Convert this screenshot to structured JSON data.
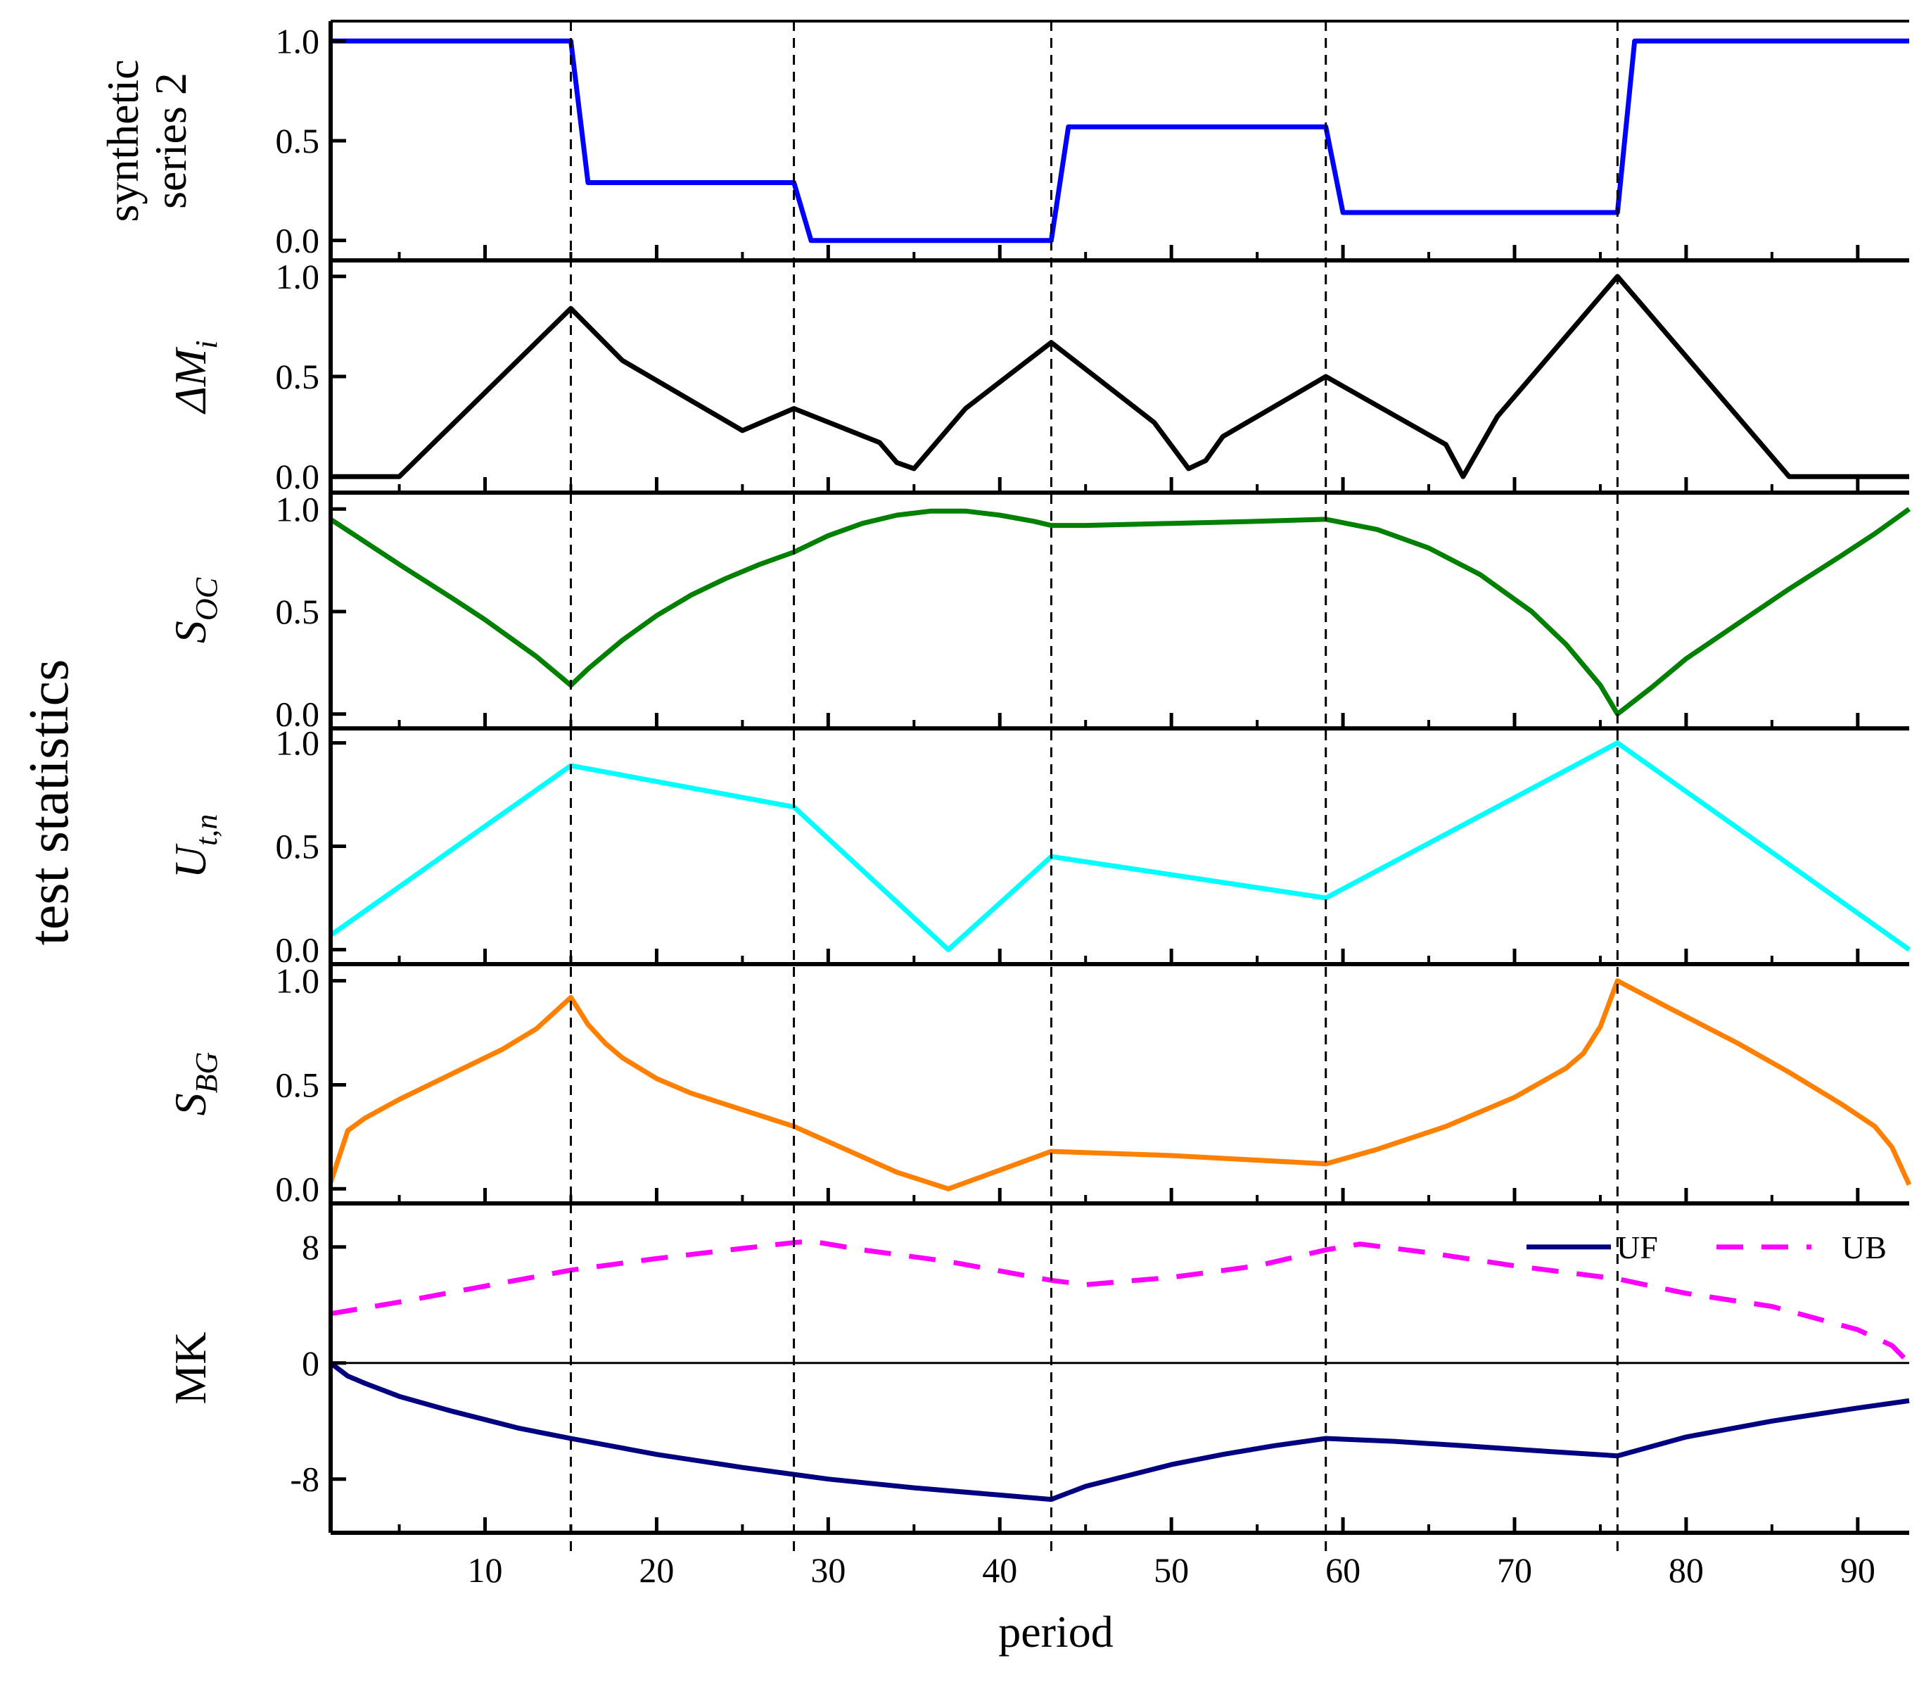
{
  "chart_data": {
    "type": "line",
    "xlabel": "period",
    "ylabel": "test statistics",
    "xlim": [
      1,
      93
    ],
    "x_ticks": [
      10,
      20,
      30,
      40,
      50,
      60,
      70,
      80,
      90
    ],
    "x_tick_labels": [
      "10",
      "20",
      "30",
      "40",
      "50",
      "60",
      "70",
      "80",
      "90"
    ],
    "change_points": [
      15,
      28,
      43,
      59,
      76
    ],
    "panels": [
      {
        "id": "synthetic",
        "ylabel_lines": [
          "synthetic",
          "series 2"
        ],
        "ylim": [
          -0.1,
          1.1
        ],
        "y_ticks": [
          0,
          0.5,
          1
        ],
        "y_tick_labels": [
          "0.0",
          "0.5",
          "1.0"
        ],
        "series": [
          {
            "name": "synthetic series 2",
            "color": "#0000ff",
            "dash": "",
            "points": [
              [
                1,
                1.0
              ],
              [
                15,
                1.0
              ],
              [
                16,
                0.29
              ],
              [
                28,
                0.29
              ],
              [
                29,
                0.0
              ],
              [
                43,
                0.0
              ],
              [
                44,
                0.57
              ],
              [
                59,
                0.57
              ],
              [
                60,
                0.14
              ],
              [
                76,
                0.14
              ],
              [
                77,
                1.0
              ],
              [
                93,
                1.0
              ]
            ]
          }
        ]
      },
      {
        "id": "delta-m",
        "ylabel_main": "ΔM",
        "ylabel_sub": "i",
        "ylim": [
          -0.08,
          1.08
        ],
        "y_ticks": [
          0,
          0.5,
          1
        ],
        "y_tick_labels": [
          "0.0",
          "0.5",
          "1.0"
        ],
        "series": [
          {
            "name": "ΔMi",
            "color": "#000000",
            "dash": "",
            "points": [
              [
                1,
                0.0
              ],
              [
                5,
                0.0
              ],
              [
                15,
                0.84
              ],
              [
                18,
                0.58
              ],
              [
                25,
                0.23
              ],
              [
                28,
                0.34
              ],
              [
                33,
                0.17
              ],
              [
                34,
                0.07
              ],
              [
                35,
                0.04
              ],
              [
                38,
                0.34
              ],
              [
                43,
                0.67
              ],
              [
                49,
                0.27
              ],
              [
                51,
                0.04
              ],
              [
                52,
                0.08
              ],
              [
                53,
                0.2
              ],
              [
                59,
                0.5
              ],
              [
                66,
                0.16
              ],
              [
                67,
                0.0
              ],
              [
                69,
                0.3
              ],
              [
                76,
                1.0
              ],
              [
                86,
                0.0
              ],
              [
                93,
                0.0
              ]
            ]
          }
        ]
      },
      {
        "id": "s-oc",
        "ylabel_main": "S",
        "ylabel_sub": "OC",
        "ylim": [
          -0.07,
          1.08
        ],
        "y_ticks": [
          0,
          0.5,
          1
        ],
        "y_tick_labels": [
          "0.0",
          "0.5",
          "1.0"
        ],
        "series": [
          {
            "name": "SOC",
            "color": "#008000",
            "dash": "",
            "points": [
              [
                1,
                0.95
              ],
              [
                3,
                0.84
              ],
              [
                5,
                0.73
              ],
              [
                8,
                0.57
              ],
              [
                10,
                0.46
              ],
              [
                13,
                0.28
              ],
              [
                15,
                0.14
              ],
              [
                16,
                0.22
              ],
              [
                18,
                0.36
              ],
              [
                20,
                0.48
              ],
              [
                22,
                0.58
              ],
              [
                24,
                0.66
              ],
              [
                26,
                0.73
              ],
              [
                28,
                0.79
              ],
              [
                30,
                0.87
              ],
              [
                32,
                0.93
              ],
              [
                34,
                0.97
              ],
              [
                36,
                0.99
              ],
              [
                38,
                0.99
              ],
              [
                40,
                0.97
              ],
              [
                42,
                0.94
              ],
              [
                43,
                0.92
              ],
              [
                45,
                0.92
              ],
              [
                50,
                0.93
              ],
              [
                55,
                0.94
              ],
              [
                59,
                0.95
              ],
              [
                62,
                0.9
              ],
              [
                65,
                0.81
              ],
              [
                68,
                0.68
              ],
              [
                71,
                0.5
              ],
              [
                73,
                0.34
              ],
              [
                75,
                0.14
              ],
              [
                76,
                0.0
              ],
              [
                78,
                0.13
              ],
              [
                80,
                0.27
              ],
              [
                83,
                0.44
              ],
              [
                86,
                0.61
              ],
              [
                89,
                0.77
              ],
              [
                91,
                0.88
              ],
              [
                93,
                1.0
              ]
            ]
          }
        ]
      },
      {
        "id": "u-tn",
        "ylabel_main": "U",
        "ylabel_sub": "t,n",
        "ylim": [
          -0.07,
          1.07
        ],
        "y_ticks": [
          0,
          0.5,
          1
        ],
        "y_tick_labels": [
          "0.0",
          "0.5",
          "1.0"
        ],
        "series": [
          {
            "name": "Ut,n",
            "color": "#00ffff",
            "dash": "",
            "points": [
              [
                1,
                0.07
              ],
              [
                15,
                0.89
              ],
              [
                28,
                0.69
              ],
              [
                37,
                0.0
              ],
              [
                43,
                0.45
              ],
              [
                59,
                0.25
              ],
              [
                76,
                1.0
              ],
              [
                93,
                0.0
              ]
            ]
          }
        ]
      },
      {
        "id": "s-bg",
        "ylabel_main": "S",
        "ylabel_sub": "BG",
        "ylim": [
          -0.07,
          1.08
        ],
        "y_ticks": [
          0,
          0.5,
          1
        ],
        "y_tick_labels": [
          "0.0",
          "0.5",
          "1.0"
        ],
        "series": [
          {
            "name": "SBG",
            "color": "#ff8000",
            "dash": "",
            "points": [
              [
                1,
                0.03
              ],
              [
                2,
                0.28
              ],
              [
                3,
                0.34
              ],
              [
                5,
                0.43
              ],
              [
                8,
                0.55
              ],
              [
                11,
                0.67
              ],
              [
                13,
                0.77
              ],
              [
                15,
                0.92
              ],
              [
                16,
                0.79
              ],
              [
                17,
                0.7
              ],
              [
                18,
                0.63
              ],
              [
                20,
                0.53
              ],
              [
                22,
                0.46
              ],
              [
                25,
                0.38
              ],
              [
                28,
                0.3
              ],
              [
                31,
                0.19
              ],
              [
                34,
                0.08
              ],
              [
                37,
                0.0
              ],
              [
                40,
                0.09
              ],
              [
                43,
                0.18
              ],
              [
                50,
                0.16
              ],
              [
                59,
                0.12
              ],
              [
                62,
                0.19
              ],
              [
                66,
                0.3
              ],
              [
                70,
                0.44
              ],
              [
                73,
                0.58
              ],
              [
                74,
                0.65
              ],
              [
                75,
                0.78
              ],
              [
                76,
                1.0
              ],
              [
                79,
                0.87
              ],
              [
                83,
                0.7
              ],
              [
                86,
                0.56
              ],
              [
                89,
                0.41
              ],
              [
                91,
                0.3
              ],
              [
                92,
                0.2
              ],
              [
                93,
                0.02
              ]
            ]
          }
        ]
      },
      {
        "id": "mk",
        "ylabel_main": "MK",
        "ylim": [
          -11.7,
          11.0
        ],
        "y_ticks": [
          -8,
          0,
          8
        ],
        "y_tick_labels": [
          "-8",
          "0",
          "8"
        ],
        "zero_line": true,
        "legend": {
          "position": "top-right",
          "entries": [
            "UF",
            "UB"
          ]
        },
        "series": [
          {
            "name": "UF",
            "color": "#000080",
            "dash": "",
            "points": [
              [
                1,
                0.0
              ],
              [
                2,
                -0.9
              ],
              [
                3,
                -1.4
              ],
              [
                5,
                -2.3
              ],
              [
                8,
                -3.3
              ],
              [
                10,
                -3.9
              ],
              [
                12,
                -4.5
              ],
              [
                15,
                -5.2
              ],
              [
                20,
                -6.3
              ],
              [
                25,
                -7.2
              ],
              [
                30,
                -8.0
              ],
              [
                35,
                -8.6
              ],
              [
                40,
                -9.1
              ],
              [
                43,
                -9.4
              ],
              [
                45,
                -8.5
              ],
              [
                48,
                -7.6
              ],
              [
                50,
                -7.0
              ],
              [
                53,
                -6.3
              ],
              [
                56,
                -5.7
              ],
              [
                59,
                -5.2
              ],
              [
                63,
                -5.4
              ],
              [
                67,
                -5.7
              ],
              [
                72,
                -6.1
              ],
              [
                76,
                -6.4
              ],
              [
                80,
                -5.1
              ],
              [
                85,
                -4.0
              ],
              [
                90,
                -3.1
              ],
              [
                93,
                -2.6
              ]
            ]
          },
          {
            "name": "UB",
            "color": "#ff00ff",
            "dash": "38,26",
            "points": [
              [
                1,
                3.4
              ],
              [
                5,
                4.2
              ],
              [
                10,
                5.3
              ],
              [
                15,
                6.4
              ],
              [
                20,
                7.2
              ],
              [
                25,
                7.9
              ],
              [
                28,
                8.3
              ],
              [
                29,
                8.4
              ],
              [
                32,
                7.8
              ],
              [
                37,
                7.0
              ],
              [
                43,
                5.7
              ],
              [
                45,
                5.4
              ],
              [
                50,
                5.9
              ],
              [
                55,
                6.7
              ],
              [
                59,
                7.8
              ],
              [
                61,
                8.2
              ],
              [
                65,
                7.6
              ],
              [
                70,
                6.7
              ],
              [
                76,
                5.8
              ],
              [
                80,
                4.8
              ],
              [
                85,
                3.9
              ],
              [
                90,
                2.3
              ],
              [
                92,
                1.2
              ],
              [
                93,
                0.0
              ]
            ]
          }
        ]
      }
    ]
  }
}
